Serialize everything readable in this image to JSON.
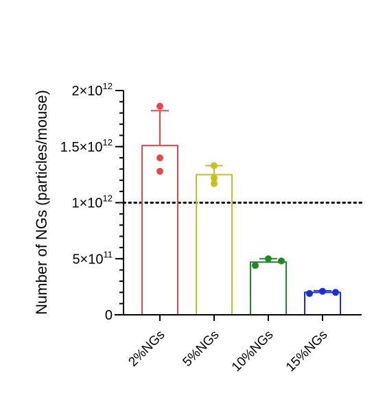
{
  "chart_data": {
    "type": "bar",
    "title": "",
    "xlabel": "",
    "ylabel": "Number of NGs (particles/mouse)",
    "ylim": [
      0,
      2000000000000
    ],
    "categories": [
      "2%NGs",
      "5%NGs",
      "10%NGs",
      "15%NGs"
    ],
    "y_ticks": [
      {
        "value": 0,
        "mantissa": "0",
        "exponent": ""
      },
      {
        "value": 500000000000,
        "mantissa": "5×10",
        "exponent": "11"
      },
      {
        "value": 1000000000000,
        "mantissa": "1×10",
        "exponent": "12"
      },
      {
        "value": 1500000000000,
        "mantissa": "1.5×10",
        "exponent": "12"
      },
      {
        "value": 2000000000000,
        "mantissa": "2×10",
        "exponent": "12"
      }
    ],
    "minor_tick_step": 100000000000,
    "reference_line": {
      "value": 1000000000000,
      "style": "dotted"
    },
    "bars": [
      {
        "category": "2%NGs",
        "mean": 1510000000000,
        "sd": 310000000000,
        "color": "#e8474c",
        "points": [
          1860000000000,
          1400000000000,
          1280000000000
        ]
      },
      {
        "category": "5%NGs",
        "mean": 1250000000000,
        "sd": 80000000000,
        "color": "#c9bf1e",
        "points": [
          1330000000000,
          1220000000000,
          1170000000000
        ]
      },
      {
        "category": "10%NGs",
        "mean": 470000000000,
        "sd": 30000000000,
        "color": "#1e8a22",
        "points": [
          440000000000,
          500000000000,
          480000000000
        ]
      },
      {
        "category": "15%NGs",
        "mean": 200000000000,
        "sd": 15000000000,
        "color": "#1a2ee0",
        "points": [
          190000000000,
          210000000000,
          200000000000
        ]
      }
    ],
    "grid": false,
    "legend": "none"
  }
}
